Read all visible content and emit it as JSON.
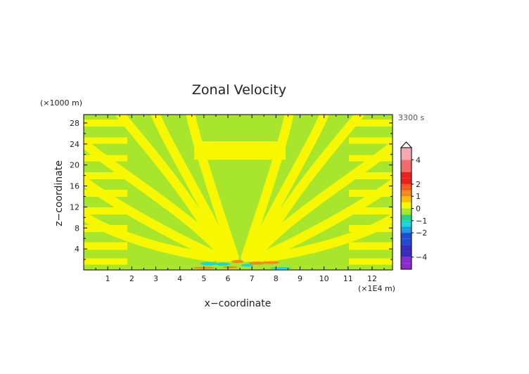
{
  "chart_data": {
    "type": "heatmap",
    "title": "Zonal Velocity",
    "xlabel": "x−coordinate",
    "ylabel": "z−coordinate",
    "x_unit": "(×1E4 m)",
    "y_unit": "(×1000 m)",
    "time_label": "3300 s",
    "xlim": [
      0,
      12.85
    ],
    "ylim": [
      0,
      29.6
    ],
    "x_ticks": [
      "1",
      "2",
      "3",
      "4",
      "5",
      "6",
      "7",
      "8",
      "9",
      "10",
      "11",
      "12"
    ],
    "y_ticks": [
      "4",
      "8",
      "12",
      "16",
      "20",
      "24",
      "28"
    ],
    "colorbar": {
      "tick_labels": [
        "4",
        "2",
        "1",
        "0",
        "−1",
        "−2",
        "−4"
      ],
      "tick_values": [
        4,
        2,
        1,
        0,
        -1,
        -2,
        -4
      ],
      "levels": [
        -5,
        -4.5,
        -4,
        -3.5,
        -3,
        -2.5,
        -2,
        -1.75,
        -1.5,
        -1.25,
        -1,
        -0.75,
        -0.5,
        -0.25,
        0,
        0.25,
        0.5,
        0.75,
        1,
        1.25,
        1.5,
        1.75,
        2,
        2.5,
        3,
        3.5,
        4,
        4.5,
        5
      ]
    },
    "field_description_levels": {
      "background_positive_band": "0 to 0.25",
      "background_negative_band": "-0.25 to 0"
    }
  },
  "colors": {
    "yellow": "#f7f700",
    "green": "#a8e62e",
    "orange": "#f08a1e",
    "cyan": "#19d7d7",
    "red": "#e8201e",
    "pink": "#f5a8b0",
    "blue": "#1e4bd2",
    "violet": "#8a2bd0"
  }
}
